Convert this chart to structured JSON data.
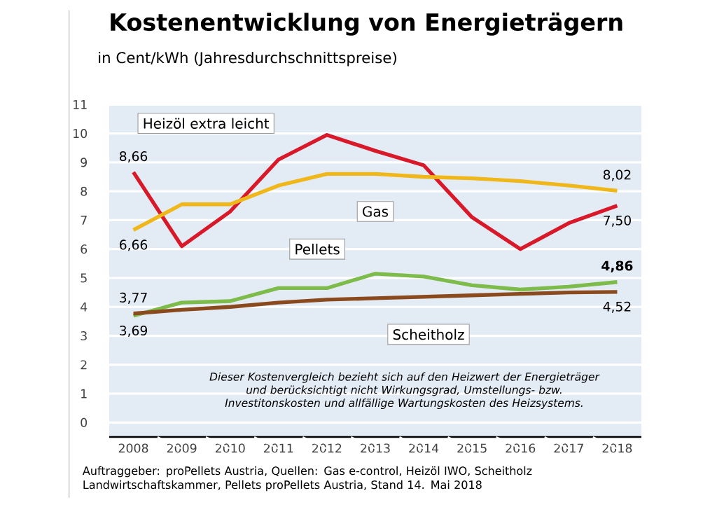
{
  "chart_data": {
    "type": "line",
    "title": "Kostenentwicklung von Energieträgern",
    "subtitle": "in Cent/kWh (Jahresdurchschnittspreise)",
    "categories": [
      "2008",
      "2009",
      "2010",
      "2011",
      "2012",
      "2013",
      "2014",
      "2015",
      "2016",
      "2017",
      "2018"
    ],
    "series": [
      {
        "name": "Heizöl extra leicht",
        "color": "#d7192a",
        "values": [
          8.66,
          6.1,
          7.3,
          9.1,
          9.95,
          9.4,
          8.9,
          7.1,
          6.0,
          6.9,
          7.5
        ],
        "value_labels": [
          "8,66",
          null,
          null,
          null,
          null,
          null,
          null,
          null,
          null,
          null,
          "7,50"
        ]
      },
      {
        "name": "Gas",
        "color": "#f0b71a",
        "values": [
          6.66,
          7.55,
          7.55,
          8.2,
          8.6,
          8.6,
          8.5,
          8.45,
          8.35,
          8.2,
          8.02
        ],
        "value_labels": [
          "6,66",
          null,
          null,
          null,
          null,
          null,
          null,
          null,
          null,
          null,
          "8,02"
        ]
      },
      {
        "name": "Pellets",
        "color": "#7dbb4a",
        "values": [
          3.69,
          4.15,
          4.2,
          4.65,
          4.65,
          5.15,
          5.05,
          4.75,
          4.6,
          4.7,
          4.86
        ],
        "value_labels": [
          "3,69",
          null,
          null,
          null,
          null,
          null,
          null,
          null,
          null,
          null,
          "**4,86**"
        ]
      },
      {
        "name": "Scheitholz",
        "color": "#8b4a1e",
        "values": [
          3.77,
          3.9,
          4.0,
          4.15,
          4.25,
          4.3,
          4.35,
          4.4,
          4.45,
          4.5,
          4.52
        ],
        "value_labels": [
          "3,77",
          null,
          null,
          null,
          null,
          null,
          null,
          null,
          null,
          null,
          "4,52"
        ]
      }
    ],
    "ylim": [
      -0.5,
      11
    ],
    "yticks": [
      0,
      1,
      2,
      3,
      4,
      5,
      6,
      7,
      8,
      9,
      10,
      11
    ],
    "grid": "y",
    "legend": false,
    "marker": "none",
    "line_style": "solid",
    "annotations": [
      "Dieser Kostenvergleich bezieht sich auf den Heizwert der Energieträger und berücksichtigt nicht Wirkungsgrad, Umstellungs- bzw. Investitonskosten und allfällige Wartungskosten des Heizsystems.",
      "Auftraggeber: proPellets Austria, Quellen: Gas e-control, Heizöl IWO, Scheitholz Landwirtschaftskammer, Pellets proPellets Austria, Stand 14. Mai 2018"
    ]
  }
}
